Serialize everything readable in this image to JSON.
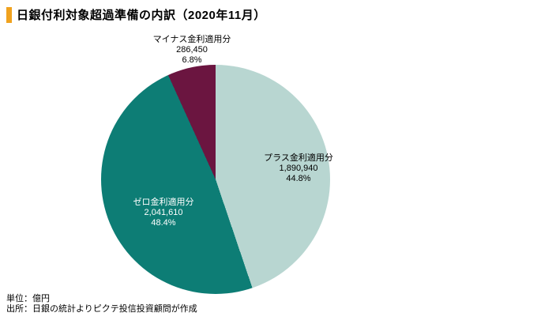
{
  "title": "日銀付利対象超過準備の内訳（2020年11月）",
  "accent_color": "#f0a21e",
  "footer": {
    "unit": "単位：億円",
    "source": "出所：日銀の統計よりピクテ投信投資顧問が作成"
  },
  "chart_data": {
    "type": "pie",
    "title": "日銀付利対象超過準備の内訳（2020年11月）",
    "unit": "億円",
    "direction": "clockwise",
    "start_angle_deg": 0,
    "legend_position": "none",
    "slices": [
      {
        "label": "プラス金利適用分",
        "value": 1890940,
        "value_label": "1,890,940",
        "percent": 44.8,
        "percent_label": "44.8%",
        "color": "#b8d6d1"
      },
      {
        "label": "ゼロ金利適用分",
        "value": 2041610,
        "value_label": "2,041,610",
        "percent": 48.4,
        "percent_label": "48.4%",
        "color": "#0d7d75"
      },
      {
        "label": "マイナス金利適用分",
        "value": 286450,
        "value_label": "286,450",
        "percent": 6.8,
        "percent_label": "6.8%",
        "color": "#6b1540"
      }
    ]
  }
}
